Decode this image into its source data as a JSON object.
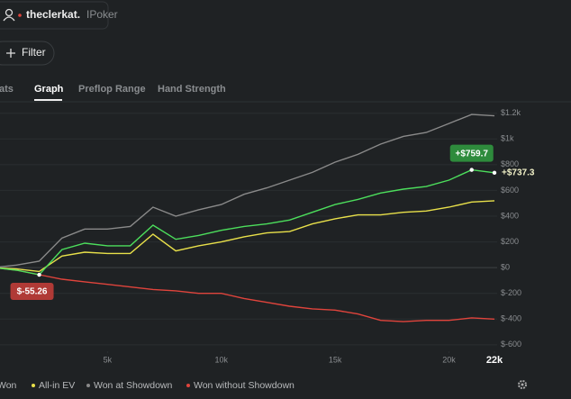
{
  "user": {
    "name": "theclerkat.",
    "site": "IPoker"
  },
  "filter": "Filter",
  "tabs": [
    "Stats",
    "Graph",
    "Preflop Range",
    "Hand Strength"
  ],
  "active_tab": 1,
  "chart_data": {
    "type": "line",
    "x": [
      0,
      1000,
      2000,
      3000,
      4000,
      5000,
      6000,
      7000,
      8000,
      9000,
      10000,
      11000,
      12000,
      13000,
      14000,
      15000,
      16000,
      17000,
      18000,
      19000,
      20000,
      21000,
      22000
    ],
    "series": [
      {
        "name": "Won",
        "color": "#4cde5c",
        "values": [
          0,
          -20,
          -55.26,
          140,
          190,
          170,
          170,
          330,
          220,
          250,
          290,
          320,
          340,
          370,
          430,
          490,
          530,
          580,
          610,
          630,
          680,
          759.7,
          737.3
        ],
        "value_labels": [
          null,
          null,
          null,
          null,
          null,
          null,
          null,
          null,
          null,
          null,
          null,
          null,
          null,
          null,
          null,
          null,
          null,
          null,
          null,
          null,
          null,
          "+$759.7",
          "+$737.3"
        ]
      },
      {
        "name": "All-in EV",
        "color": "#e8e04a",
        "values": [
          0,
          -10,
          -30,
          90,
          120,
          110,
          110,
          260,
          130,
          170,
          200,
          240,
          270,
          280,
          340,
          380,
          410,
          410,
          430,
          440,
          470,
          510,
          520
        ]
      },
      {
        "name": "Won at Showdown",
        "color": "#8a8a8a",
        "values": [
          0,
          20,
          50,
          230,
          300,
          300,
          320,
          470,
          400,
          450,
          490,
          570,
          620,
          680,
          740,
          820,
          880,
          960,
          1020,
          1050,
          1120,
          1190,
          1180
        ]
      },
      {
        "name": "Won without Showdown",
        "color": "#e0443c",
        "values": [
          0,
          -20,
          -55.26,
          -90,
          -110,
          -130,
          -150,
          -170,
          -180,
          -200,
          -200,
          -240,
          -270,
          -300,
          -320,
          -330,
          -360,
          -410,
          -420,
          -410,
          -410,
          -390,
          -400
        ],
        "value_labels": [
          null,
          null,
          "$-55.26",
          null,
          null,
          null,
          null,
          null,
          null,
          null,
          null,
          null,
          null,
          null,
          null,
          null,
          null,
          null,
          null,
          null,
          null,
          null,
          null
        ]
      }
    ],
    "xlim": [
      0,
      22000
    ],
    "ylim": [
      -650,
      1240
    ],
    "xticks": [
      {
        "value": 5000,
        "label": "5k"
      },
      {
        "value": 10000,
        "label": "10k"
      },
      {
        "value": 15000,
        "label": "15k"
      },
      {
        "value": 20000,
        "label": "20k"
      },
      {
        "value": 22000,
        "label": "22k"
      }
    ],
    "yticks": [
      {
        "value": 1200,
        "label": "$1.2k"
      },
      {
        "value": 1000,
        "label": "$1k"
      },
      {
        "value": 800,
        "label": "$800"
      },
      {
        "value": 600,
        "label": "$600"
      },
      {
        "value": 400,
        "label": "$400"
      },
      {
        "value": 200,
        "label": "$200"
      },
      {
        "value": 0,
        "label": "$0"
      },
      {
        "value": -200,
        "label": "$-200"
      },
      {
        "value": -400,
        "label": "$-400"
      },
      {
        "value": -600,
        "label": "$-600"
      }
    ],
    "grid": true
  }
}
